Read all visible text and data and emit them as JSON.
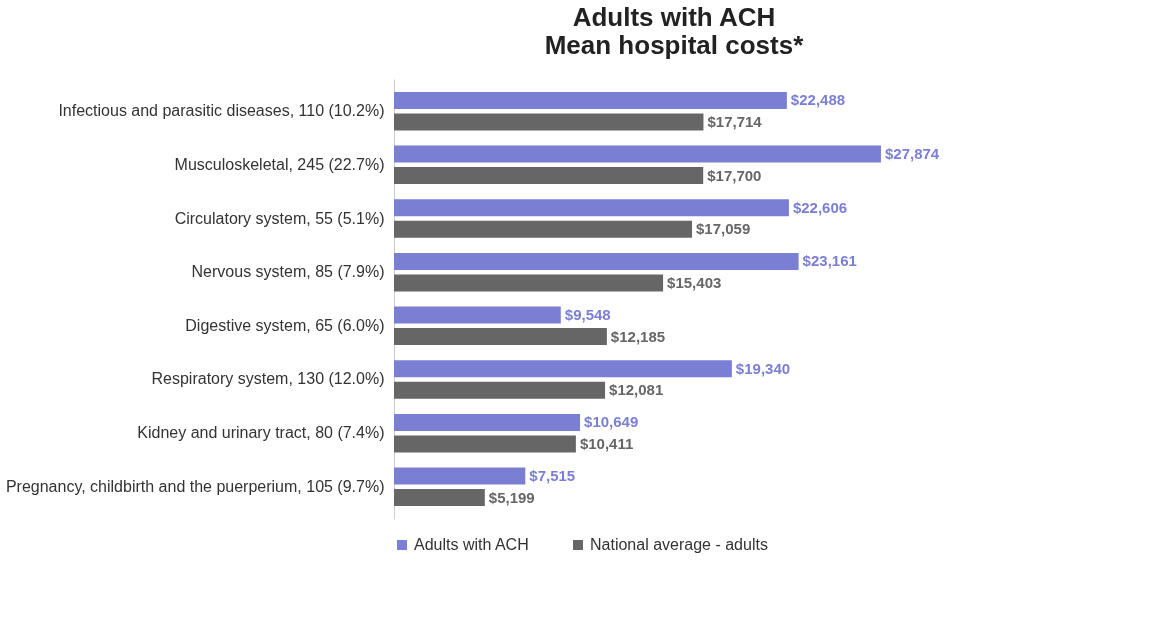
{
  "chart_data": {
    "type": "bar",
    "orientation": "horizontal",
    "title": [
      "Adults with ACH",
      "Mean hospital costs*"
    ],
    "categories": [
      "Infectious and parasitic diseases, 110 (10.2%)",
      "Musculoskeletal, 245 (22.7%)",
      "Circulatory system, 55 (5.1%)",
      "Nervous system, 85 (7.9%)",
      "Digestive system, 65 (6.0%)",
      "Respiratory system, 130 (12.0%)",
      "Kidney and urinary tract, 80 (7.4%)",
      "Pregnancy, childbirth and the puerperium, 105 (9.7%)"
    ],
    "series": [
      {
        "name": "Adults with ACH",
        "color": "#7b7fd4",
        "values": [
          22488,
          27874,
          22606,
          23161,
          9548,
          19340,
          10649,
          7515
        ],
        "value_labels": [
          "$22,488",
          "$27,874",
          "$22,606",
          "$23,161",
          "$9,548",
          "$19,340",
          "$10,649",
          "$7,515"
        ]
      },
      {
        "name": "National average - adults",
        "color": "#666666",
        "values": [
          17714,
          17700,
          17059,
          15403,
          12185,
          12081,
          10411,
          5199
        ],
        "value_labels": [
          "$17,714",
          "$17,700",
          "$17,059",
          "$15,403",
          "$12,185",
          "$12,081",
          "$10,411",
          "$5,199"
        ]
      }
    ],
    "legend": "bottom"
  }
}
